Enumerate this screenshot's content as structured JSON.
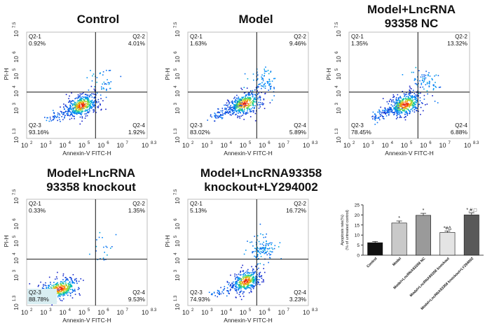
{
  "chart_data": [
    {
      "type": "scatter",
      "subtype": "flow-cytometry-density-plot",
      "title": "Control",
      "xlabel": "Annexin-V FITC-H",
      "ylabel": "PI-H",
      "x_ticks": [
        "10",
        "10",
        "10",
        "10",
        "10",
        "10",
        "10"
      ],
      "x_tick_exponents": [
        "2",
        "3",
        "4",
        "5",
        "6",
        "7",
        "8.3"
      ],
      "y_ticks": [
        "10",
        "10",
        "10",
        "10",
        "10",
        "10"
      ],
      "y_tick_exponents": [
        "1.3",
        "3",
        "4",
        "5",
        "6",
        "7.5"
      ],
      "gate_x_log": 5.6,
      "gate_y_log": 4.0,
      "quadrants": [
        {
          "id": "Q2-1",
          "label": "Q2-1",
          "value": "0.92%"
        },
        {
          "id": "Q2-2",
          "label": "Q2-2",
          "value": "4.01%"
        },
        {
          "id": "Q2-3",
          "label": "Q2-3",
          "value": "93.16%"
        },
        {
          "id": "Q2-4",
          "label": "Q2-4",
          "value": "1.92%"
        }
      ]
    },
    {
      "type": "scatter",
      "subtype": "flow-cytometry-density-plot",
      "title": "Model",
      "xlabel": "Annexin-V FITC-H",
      "ylabel": "PI-H",
      "x_ticks": [
        "10",
        "10",
        "10",
        "10",
        "10",
        "10",
        "10"
      ],
      "x_tick_exponents": [
        "2",
        "3",
        "4",
        "5",
        "6",
        "7",
        "8.3"
      ],
      "y_ticks": [
        "10",
        "10",
        "10",
        "10",
        "10",
        "10"
      ],
      "y_tick_exponents": [
        "1.3",
        "3",
        "4",
        "5",
        "6",
        "7.5"
      ],
      "gate_x_log": 5.6,
      "gate_y_log": 4.0,
      "quadrants": [
        {
          "id": "Q2-1",
          "label": "Q2-1",
          "value": "1.63%"
        },
        {
          "id": "Q2-2",
          "label": "Q2-2",
          "value": "9.46%"
        },
        {
          "id": "Q2-3",
          "label": "Q2-3",
          "value": "83.02%"
        },
        {
          "id": "Q2-4",
          "label": "Q2-4",
          "value": "5.89%"
        }
      ]
    },
    {
      "type": "scatter",
      "subtype": "flow-cytometry-density-plot",
      "title": "Model+LncRNA\n93358 NC",
      "xlabel": "Annexin-V FITC-H",
      "ylabel": "PI-H",
      "x_ticks": [
        "10",
        "10",
        "10",
        "10",
        "10",
        "10",
        "10"
      ],
      "x_tick_exponents": [
        "2",
        "3",
        "4",
        "5",
        "6",
        "7",
        "8.3"
      ],
      "y_ticks": [
        "10",
        "10",
        "10",
        "10",
        "10",
        "10"
      ],
      "y_tick_exponents": [
        "1.3",
        "3",
        "4",
        "5",
        "6",
        "7.5"
      ],
      "gate_x_log": 5.6,
      "gate_y_log": 4.0,
      "quadrants": [
        {
          "id": "Q2-1",
          "label": "Q2-1",
          "value": "1.35%"
        },
        {
          "id": "Q2-2",
          "label": "Q2-2",
          "value": "13.32%"
        },
        {
          "id": "Q2-3",
          "label": "Q2-3",
          "value": "78.45%"
        },
        {
          "id": "Q2-4",
          "label": "Q2-4",
          "value": "6.88%"
        }
      ]
    },
    {
      "type": "scatter",
      "subtype": "flow-cytometry-density-plot",
      "title": "Model+LncRNA\n93358 knockout",
      "xlabel": "Annexin-V FITC-H",
      "ylabel": "PI-H",
      "x_ticks": [
        "10",
        "10",
        "10",
        "10",
        "10",
        "10",
        "10"
      ],
      "x_tick_exponents": [
        "2",
        "3",
        "4",
        "5",
        "6",
        "7",
        "8.3"
      ],
      "y_ticks": [
        "10",
        "10",
        "10",
        "10",
        "10",
        "10"
      ],
      "y_tick_exponents": [
        "1.3",
        "3",
        "4",
        "5",
        "6",
        "7.5"
      ],
      "gate_x_log": 5.6,
      "gate_y_log": 4.0,
      "quadrants": [
        {
          "id": "Q2-1",
          "label": "Q2-1",
          "value": "0.33%"
        },
        {
          "id": "Q2-2",
          "label": "Q2-2",
          "value": "1.35%"
        },
        {
          "id": "Q2-3",
          "label": "Q2-3",
          "value": "88.78%"
        },
        {
          "id": "Q2-4",
          "label": "Q2-4",
          "value": "9.53%"
        }
      ]
    },
    {
      "type": "scatter",
      "subtype": "flow-cytometry-density-plot",
      "title": "Model+LncRNA93358\nknockout+LY294002",
      "xlabel": "Annexin-V FITC-H",
      "ylabel": "PI-H",
      "x_ticks": [
        "10",
        "10",
        "10",
        "10",
        "10",
        "10",
        "10"
      ],
      "x_tick_exponents": [
        "2",
        "3",
        "4",
        "5",
        "6",
        "7",
        "8.3"
      ],
      "y_ticks": [
        "10",
        "10",
        "10",
        "10",
        "10",
        "10"
      ],
      "y_tick_exponents": [
        "1.3",
        "3",
        "4",
        "5",
        "6",
        "7.5"
      ],
      "gate_x_log": 5.6,
      "gate_y_log": 4.0,
      "quadrants": [
        {
          "id": "Q2-1",
          "label": "Q2-1",
          "value": "5.13%"
        },
        {
          "id": "Q2-2",
          "label": "Q2-2",
          "value": "16.72%"
        },
        {
          "id": "Q2-3",
          "label": "Q2-3",
          "value": "74.93%"
        },
        {
          "id": "Q2-4",
          "label": "Q2-4",
          "value": "3.23%"
        }
      ]
    },
    {
      "type": "bar",
      "title": "",
      "ylabel": "Apoptosis rate(%)\n(% of untreated control)",
      "ylim": [
        0,
        25
      ],
      "yticks": [
        0,
        5,
        10,
        15,
        20,
        25
      ],
      "categories": [
        "Control",
        "Model",
        "Model+LncRNA93358 NC",
        "Model+LncRNA93358 knockout",
        "Model+LncRNA93358 knockout+LY294002"
      ],
      "values": [
        6.2,
        16.0,
        19.8,
        11.3,
        20.0
      ],
      "errors": [
        0.6,
        1.0,
        1.0,
        0.7,
        1.0
      ],
      "annotations": [
        "",
        "*",
        "*",
        "*#Δ",
        "*,#,□"
      ],
      "colors": [
        "#111111",
        "#c9c9c9",
        "#9a9a9a",
        "#e4e4e4",
        "#595959"
      ]
    }
  ]
}
